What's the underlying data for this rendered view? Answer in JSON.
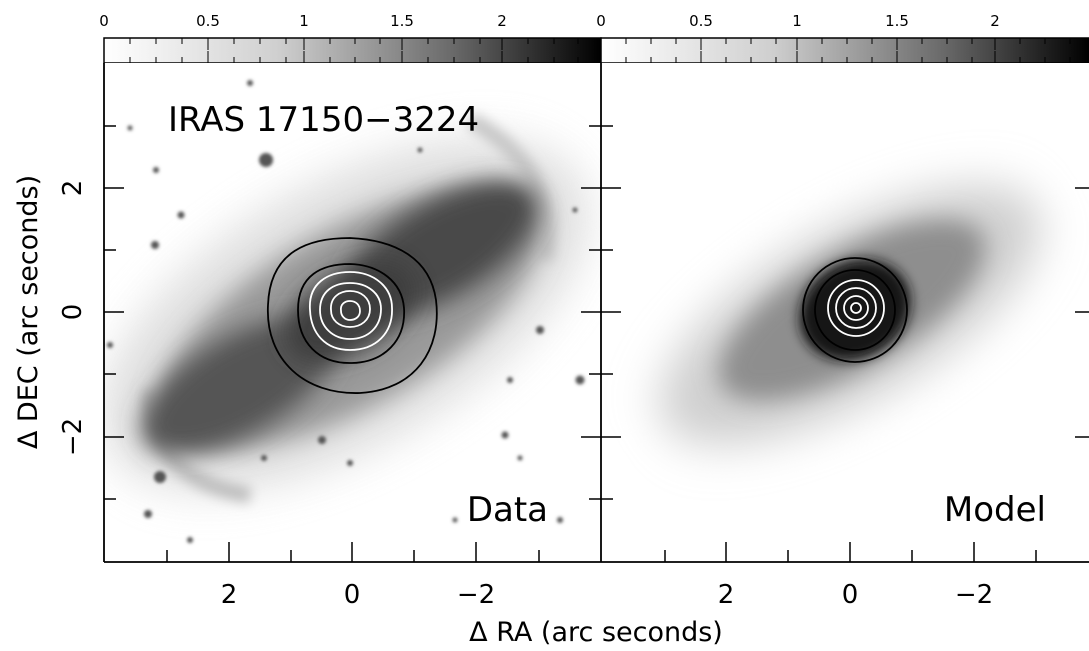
{
  "object_name": "IRAS 17150−3224",
  "panels": {
    "data": {
      "label": "Data"
    },
    "model": {
      "label": "Model"
    }
  },
  "colorbar": {
    "ticks": [
      "0",
      "0.5",
      "1",
      "1.5",
      "2"
    ],
    "colors": [
      "#ffffff",
      "#000000"
    ]
  },
  "axes": {
    "x_title": "Δ RA (arc seconds)",
    "y_title": "Δ DEC (arc seconds)",
    "x_ticks": [
      "2",
      "0",
      "−2"
    ],
    "y_ticks": [
      "2",
      "0",
      "−2"
    ]
  },
  "contours": {
    "outer_color": "#000000",
    "inner_color": "#ffffff"
  },
  "icons": {
    "stars": "star-icon"
  }
}
